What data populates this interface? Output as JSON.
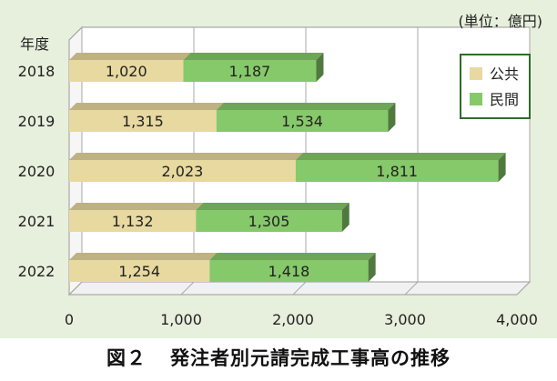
{
  "chart_data": {
    "type": "bar",
    "orientation": "horizontal",
    "stacked": true,
    "unit_label": "(単位：億円)",
    "y_axis_title": "年度",
    "categories": [
      "2018",
      "2019",
      "2020",
      "2021",
      "2022"
    ],
    "series": [
      {
        "name": "公共",
        "color": "#e8d9a0",
        "values": [
          1020,
          1315,
          2023,
          1132,
          1254
        ]
      },
      {
        "name": "民間",
        "color": "#86c96a",
        "values": [
          1187,
          1534,
          1811,
          1305,
          1418
        ]
      }
    ],
    "value_labels": [
      [
        "1,020",
        "1,315",
        "2,023",
        "1,132",
        "1,254"
      ],
      [
        "1,187",
        "1,534",
        "1,811",
        "1,305",
        "1,418"
      ]
    ],
    "x_ticks": [
      0,
      1000,
      2000,
      3000,
      4000
    ],
    "x_tick_labels": [
      "0",
      "1,000",
      "2,000",
      "3,000",
      "4,000"
    ],
    "xlim": [
      0,
      4000
    ],
    "grid": true,
    "legend_position": "top-right",
    "legend_border_color": "#2e6b2e"
  },
  "caption": {
    "figure_no": "図２",
    "title": "発注者別元請完成工事高の推移"
  }
}
